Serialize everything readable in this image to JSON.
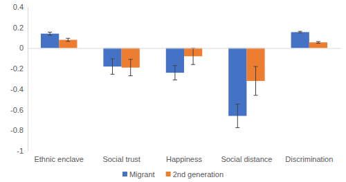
{
  "chart_data": {
    "type": "bar",
    "categories": [
      "Ethnic enclave",
      "Social trust",
      "Happiness",
      "Social distance",
      "Discrimination"
    ],
    "series": [
      {
        "name": "Migrant",
        "color": "#4472c4",
        "values": [
          0.14,
          -0.18,
          -0.24,
          -0.66,
          0.155
        ],
        "errors": [
          0.015,
          0.075,
          0.07,
          0.115,
          0.008
        ]
      },
      {
        "name": "2nd generation",
        "color": "#ed7d31",
        "values": [
          0.08,
          -0.19,
          -0.08,
          -0.32,
          0.055
        ],
        "errors": [
          0.015,
          0.08,
          0.08,
          0.14,
          0.008
        ]
      }
    ],
    "ylim": [
      -1,
      0.4
    ],
    "yticks": [
      -1,
      -0.8,
      -0.6,
      -0.4,
      -0.2,
      0,
      0.2,
      0.4
    ],
    "grid": false,
    "legend": "bottom"
  }
}
